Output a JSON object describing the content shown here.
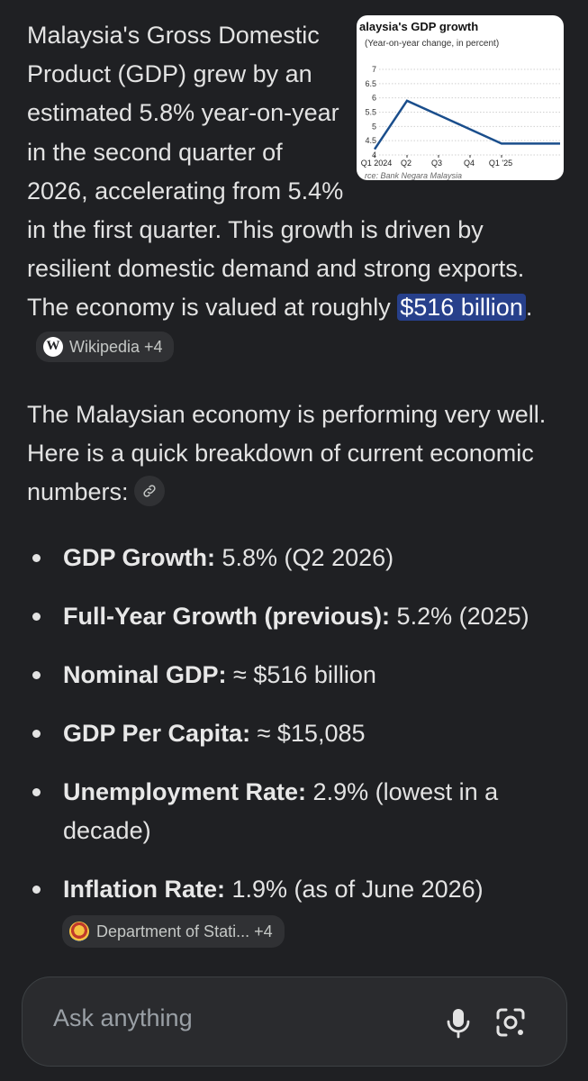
{
  "intro": {
    "text_before": "Malaysia's Gross Domestic Product (GDP) grew by an estimated 5.8% year-on-year in the second quarter of 2026, accelerating from 5.4% in the first quarter. This growth is driven by resilient domestic demand and strong exports. The economy is valued at roughly ",
    "highlight": "$516 billion",
    "text_after": ".",
    "source_chip": {
      "label": "Wikipedia +4",
      "icon": "wikipedia-icon"
    }
  },
  "para2": {
    "text": "The Malaysian economy is performing very well. Here is a quick breakdown of current economic numbers:",
    "link_icon": "link-icon"
  },
  "stats": [
    {
      "label": "GDP Growth:",
      "value": " 5.8% (Q2 2026)"
    },
    {
      "label": "Full-Year Growth (previous):",
      "value": " 5.2% (2025)"
    },
    {
      "label": "Nominal GDP:",
      "value": " ≈ $516 billion"
    },
    {
      "label": "GDP Per Capita:",
      "value": " ≈ $15,085"
    },
    {
      "label": "Unemployment Rate:",
      "value": " 2.9% (lowest in a decade)"
    },
    {
      "label": "Inflation Rate:",
      "value": " 1.9% (as of June 2026)"
    }
  ],
  "dept_chip": {
    "label": "Department of Stati... +4",
    "icon": "malaysia-seal-icon"
  },
  "ask": {
    "placeholder": "Ask anything",
    "mic_icon": "microphone-icon",
    "lens_icon": "camera-search-icon"
  },
  "chart_data": {
    "type": "line",
    "title": "alaysia's GDP growth",
    "subtitle": "(Year-on-year change, in percent)",
    "categories": [
      "Q1 2024",
      "Q2",
      "Q3",
      "Q4",
      "Q1 '25",
      ""
    ],
    "values": [
      4.2,
      5.9,
      5.4,
      4.9,
      4.4,
      4.4
    ],
    "ylim": [
      4,
      7
    ],
    "yticks": [
      "4",
      "4.5",
      "5",
      "5.5",
      "6",
      "6.5",
      "7"
    ],
    "source": "rce: Bank Negara Malaysia",
    "line_color": "#1a4e8c",
    "grid": true
  }
}
